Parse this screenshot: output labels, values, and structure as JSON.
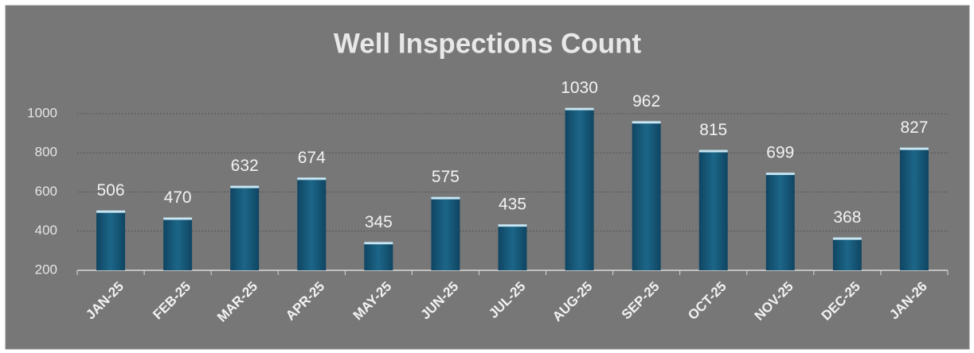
{
  "chart_data": {
    "type": "bar",
    "title": "Well Inspections Count",
    "categories": [
      "JAN-25",
      "FEB-25",
      "MAR-25",
      "APR-25",
      "MAY-25",
      "JUN-25",
      "JUL-25",
      "AUG-25",
      "SEP-25",
      "OCT-25",
      "NOV-25",
      "DEC-25",
      "JAN-26"
    ],
    "values": [
      506,
      470,
      632,
      674,
      345,
      575,
      435,
      1030,
      962,
      815,
      699,
      368,
      827
    ],
    "color": "#175a7a",
    "ylim": [
      200,
      1200
    ],
    "yticks": [
      200,
      400,
      600,
      800,
      1000
    ],
    "grid": true
  }
}
